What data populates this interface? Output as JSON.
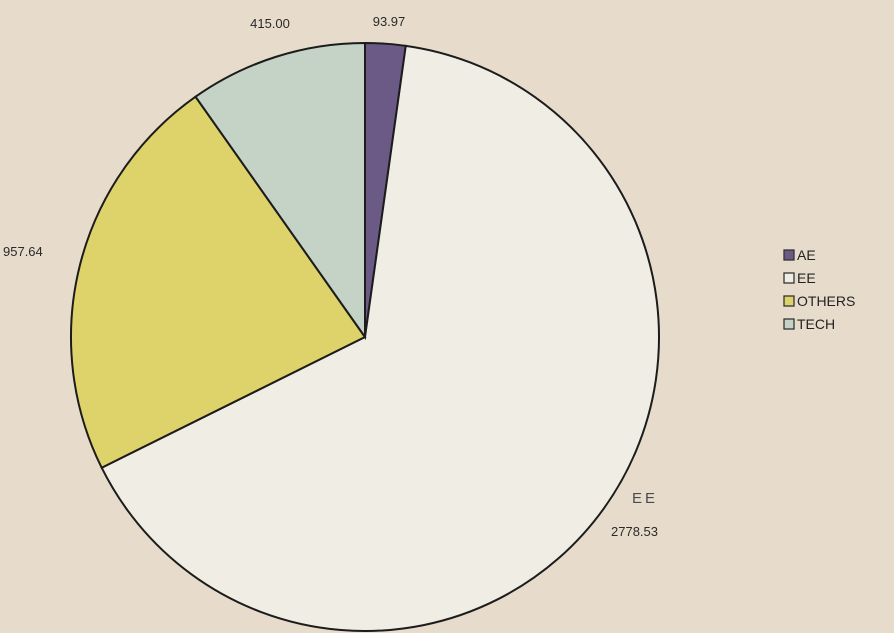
{
  "chart_data": {
    "type": "pie",
    "title": "",
    "slices": [
      {
        "label": "AE",
        "value": 93.97,
        "value_text": "93.97",
        "color": "#6b5a86"
      },
      {
        "label": "EE",
        "value": 2778.53,
        "value_text": "2778.53",
        "color": "#f0ede4"
      },
      {
        "label": "OTHERS",
        "value": 957.64,
        "value_text": "957.64",
        "color": "#ddd36a"
      },
      {
        "label": "TECH",
        "value": 415.0,
        "value_text": "415.00",
        "color": "#c5d3c7"
      }
    ],
    "category_label_shown": "EE",
    "start_angle": "12 o'clock",
    "direction": "clockwise",
    "legend": {
      "position": "right",
      "entries": [
        "AE",
        "EE",
        "OTHERS",
        "TECH"
      ]
    }
  }
}
